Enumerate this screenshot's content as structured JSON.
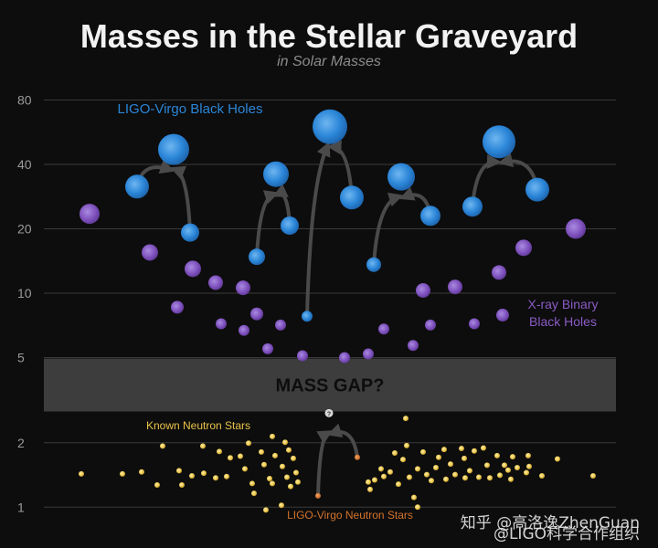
{
  "chart_data": {
    "type": "scatter",
    "title": "Masses in the Stellar Graveyard",
    "subtitle": "in Solar Masses",
    "y_axis": {
      "scale": "log",
      "range": [
        0.9,
        95
      ],
      "ticks": [
        1,
        2,
        5,
        10,
        20,
        40,
        80
      ],
      "tick_labels": [
        "1",
        "2",
        "5",
        "10",
        "20",
        "40",
        "80"
      ],
      "grid": true
    },
    "mass_gap": {
      "label": "MASS GAP?",
      "range": [
        2.8,
        4.95
      ]
    },
    "series": [
      {
        "name": "LIGO-Virgo Black Holes",
        "color": "#2b86d8",
        "points": [
          {
            "x": 150,
            "y": 31.5,
            "size": 13
          },
          {
            "x": 208,
            "y": 19.2,
            "size": 10
          },
          {
            "x": 190,
            "y": 47,
            "size": 17
          },
          {
            "x": 281,
            "y": 14.8,
            "size": 9
          },
          {
            "x": 317,
            "y": 20.7,
            "size": 10
          },
          {
            "x": 302,
            "y": 36,
            "size": 14
          },
          {
            "x": 336,
            "y": 7.8,
            "size": 6
          },
          {
            "x": 385,
            "y": 28,
            "size": 13
          },
          {
            "x": 361,
            "y": 60,
            "size": 19
          },
          {
            "x": 409,
            "y": 13.6,
            "size": 8
          },
          {
            "x": 471,
            "y": 23,
            "size": 11
          },
          {
            "x": 439,
            "y": 35,
            "size": 15
          },
          {
            "x": 517,
            "y": 25.4,
            "size": 11
          },
          {
            "x": 588,
            "y": 30.5,
            "size": 13
          },
          {
            "x": 546,
            "y": 51,
            "size": 18
          }
        ]
      },
      {
        "name": "X-ray Binary Black Holes",
        "color": "#8a5bc4",
        "points": [
          {
            "x": 98,
            "y": 23.5,
            "size": 11
          },
          {
            "x": 164,
            "y": 15.5,
            "size": 9
          },
          {
            "x": 194,
            "y": 8.6,
            "size": 7
          },
          {
            "x": 211,
            "y": 13,
            "size": 9
          },
          {
            "x": 236,
            "y": 11.2,
            "size": 8
          },
          {
            "x": 242,
            "y": 7.2,
            "size": 6
          },
          {
            "x": 266,
            "y": 10.6,
            "size": 8
          },
          {
            "x": 267,
            "y": 6.7,
            "size": 6
          },
          {
            "x": 281,
            "y": 8,
            "size": 7
          },
          {
            "x": 293,
            "y": 5.5,
            "size": 6
          },
          {
            "x": 307,
            "y": 7.1,
            "size": 6
          },
          {
            "x": 331,
            "y": 5.1,
            "size": 6
          },
          {
            "x": 377,
            "y": 5.0,
            "size": 6
          },
          {
            "x": 403,
            "y": 5.2,
            "size": 6
          },
          {
            "x": 420,
            "y": 6.8,
            "size": 6
          },
          {
            "x": 452,
            "y": 5.7,
            "size": 6
          },
          {
            "x": 463,
            "y": 10.3,
            "size": 8
          },
          {
            "x": 471,
            "y": 7.1,
            "size": 6
          },
          {
            "x": 498,
            "y": 10.7,
            "size": 8
          },
          {
            "x": 519,
            "y": 7.2,
            "size": 6
          },
          {
            "x": 546,
            "y": 12.5,
            "size": 8
          },
          {
            "x": 550,
            "y": 7.9,
            "size": 7
          },
          {
            "x": 573,
            "y": 16.3,
            "size": 9
          },
          {
            "x": 630,
            "y": 20,
            "size": 11
          }
        ]
      },
      {
        "name": "Known Neutron Stars",
        "color": "#e9c34a",
        "points": [
          {
            "x": 89,
            "y": 1.43
          },
          {
            "x": 134,
            "y": 1.43
          },
          {
            "x": 155,
            "y": 1.46
          },
          {
            "x": 172,
            "y": 1.27
          },
          {
            "x": 178,
            "y": 1.93
          },
          {
            "x": 196,
            "y": 1.48
          },
          {
            "x": 199,
            "y": 1.27
          },
          {
            "x": 210,
            "y": 1.4
          },
          {
            "x": 222,
            "y": 1.93
          },
          {
            "x": 223,
            "y": 1.44
          },
          {
            "x": 236,
            "y": 1.37
          },
          {
            "x": 240,
            "y": 1.82
          },
          {
            "x": 248,
            "y": 1.39
          },
          {
            "x": 252,
            "y": 1.7
          },
          {
            "x": 263,
            "y": 1.73
          },
          {
            "x": 268,
            "y": 1.51
          },
          {
            "x": 272,
            "y": 1.99
          },
          {
            "x": 276,
            "y": 1.29
          },
          {
            "x": 278,
            "y": 1.16
          },
          {
            "x": 286,
            "y": 1.81
          },
          {
            "x": 289,
            "y": 1.58
          },
          {
            "x": 295,
            "y": 1.36
          },
          {
            "x": 298,
            "y": 1.29
          },
          {
            "x": 298,
            "y": 2.14
          },
          {
            "x": 301,
            "y": 1.74
          },
          {
            "x": 309,
            "y": 1.55
          },
          {
            "x": 312,
            "y": 2.01
          },
          {
            "x": 314,
            "y": 1.38
          },
          {
            "x": 316,
            "y": 1.85
          },
          {
            "x": 318,
            "y": 1.25
          },
          {
            "x": 321,
            "y": 1.69
          },
          {
            "x": 324,
            "y": 1.45
          },
          {
            "x": 326,
            "y": 1.31
          },
          {
            "x": 291,
            "y": 0.97
          },
          {
            "x": 308,
            "y": 1.02
          },
          {
            "x": 403,
            "y": 1.31
          },
          {
            "x": 405,
            "y": 1.21
          },
          {
            "x": 410,
            "y": 1.34
          },
          {
            "x": 417,
            "y": 1.51
          },
          {
            "x": 420,
            "y": 1.39
          },
          {
            "x": 427,
            "y": 1.46
          },
          {
            "x": 432,
            "y": 1.79
          },
          {
            "x": 436,
            "y": 1.28
          },
          {
            "x": 441,
            "y": 1.67
          },
          {
            "x": 444,
            "y": 2.6
          },
          {
            "x": 445,
            "y": 1.94
          },
          {
            "x": 448,
            "y": 1.38
          },
          {
            "x": 453,
            "y": 1.11
          },
          {
            "x": 457,
            "y": 1.51
          },
          {
            "x": 457,
            "y": 1.0
          },
          {
            "x": 463,
            "y": 1.81
          },
          {
            "x": 467,
            "y": 1.42
          },
          {
            "x": 472,
            "y": 1.33
          },
          {
            "x": 477,
            "y": 1.53
          },
          {
            "x": 480,
            "y": 1.71
          },
          {
            "x": 486,
            "y": 1.86
          },
          {
            "x": 488,
            "y": 1.35
          },
          {
            "x": 493,
            "y": 1.59
          },
          {
            "x": 498,
            "y": 1.42
          },
          {
            "x": 505,
            "y": 1.88
          },
          {
            "x": 508,
            "y": 1.69
          },
          {
            "x": 509,
            "y": 1.37
          },
          {
            "x": 514,
            "y": 1.48
          },
          {
            "x": 519,
            "y": 1.83
          },
          {
            "x": 524,
            "y": 1.38
          },
          {
            "x": 529,
            "y": 1.89
          },
          {
            "x": 533,
            "y": 1.57
          },
          {
            "x": 536,
            "y": 1.37
          },
          {
            "x": 544,
            "y": 1.74
          },
          {
            "x": 547,
            "y": 1.41
          },
          {
            "x": 552,
            "y": 1.57
          },
          {
            "x": 556,
            "y": 1.49
          },
          {
            "x": 559,
            "y": 1.35
          },
          {
            "x": 561,
            "y": 1.72
          },
          {
            "x": 566,
            "y": 1.53
          },
          {
            "x": 576,
            "y": 1.45
          },
          {
            "x": 578,
            "y": 1.74
          },
          {
            "x": 579,
            "y": 1.55
          },
          {
            "x": 593,
            "y": 1.4
          },
          {
            "x": 610,
            "y": 1.68
          },
          {
            "x": 649,
            "y": 1.4
          }
        ]
      },
      {
        "name": "LIGO-Virgo Neutron Stars",
        "color": "#d4732a",
        "points": [
          {
            "x": 348,
            "y": 1.13
          },
          {
            "x": 391,
            "y": 1.71
          }
        ]
      }
    ],
    "merger_remnant": {
      "x": 360,
      "y": 2.75,
      "label": "?"
    },
    "mergers": [
      {
        "from": [
          [
            150,
            31.5
          ],
          [
            208,
            19.2
          ]
        ],
        "to": [
          190,
          47
        ]
      },
      {
        "from": [
          [
            281,
            14.8
          ],
          [
            317,
            20.7
          ]
        ],
        "to": [
          302,
          36
        ]
      },
      {
        "from": [
          [
            336,
            7.8
          ],
          [
            385,
            28
          ]
        ],
        "to": [
          361,
          60
        ]
      },
      {
        "from": [
          [
            409,
            13.6
          ],
          [
            471,
            23
          ]
        ],
        "to": [
          439,
          35
        ]
      },
      {
        "from": [
          [
            517,
            25.4
          ],
          [
            588,
            30.5
          ]
        ],
        "to": [
          546,
          51
        ]
      },
      {
        "from": [
          [
            348,
            1.13
          ],
          [
            391,
            1.71
          ]
        ],
        "to": [
          360,
          2.75
        ]
      }
    ],
    "series_labels": [
      {
        "text": "LIGO-Virgo Black Holes",
        "color": "#2b86d8"
      },
      {
        "text": "X-ray Binary",
        "color": "#8a5bc4"
      },
      {
        "text": "Black Holes",
        "color": "#8a5bc4"
      },
      {
        "text": "Known Neutron Stars",
        "color": "#e9c34a"
      },
      {
        "text": "LIGO-Virgo Neutron Stars",
        "color": "#d4732a"
      }
    ]
  },
  "watermarks": [
    "知乎 @高洛逸ZhenGuan",
    "@LIGO科学合作组织"
  ],
  "colors": {
    "background": "#0d0d0d",
    "grid": "#3a3a3a",
    "gap_band": "#3d3d3d",
    "arrow": "#4a4a4a",
    "title": "#f2f2f2",
    "subtitle": "#8c8c8c"
  }
}
